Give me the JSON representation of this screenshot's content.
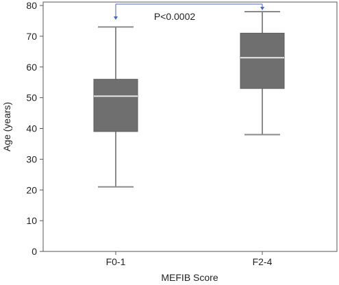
{
  "chart_data": {
    "type": "box",
    "xlabel": "MEFIB Score",
    "ylabel": "Age (years)",
    "ylim": [
      0,
      80
    ],
    "yticks": [
      0,
      10,
      20,
      30,
      40,
      50,
      60,
      70,
      80
    ],
    "categories": [
      "F0-1",
      "F2-4"
    ],
    "boxes": [
      {
        "category": "F0-1",
        "min": 21,
        "q1": 39,
        "median": 50.5,
        "q3": 56,
        "max": 73
      },
      {
        "category": "F2-4",
        "min": 38,
        "q1": 53,
        "median": 63,
        "q3": 71,
        "max": 78
      }
    ],
    "annotation": {
      "text": "P<0.0002",
      "between": [
        "F0-1",
        "F2-4"
      ]
    },
    "grid": false,
    "colors": {
      "box_fill": "#6f6f6f",
      "median_line": "#e8e8e8",
      "whisker": "#8a8a8a",
      "bracket": "#4a63c9",
      "axis": "#555555"
    }
  }
}
